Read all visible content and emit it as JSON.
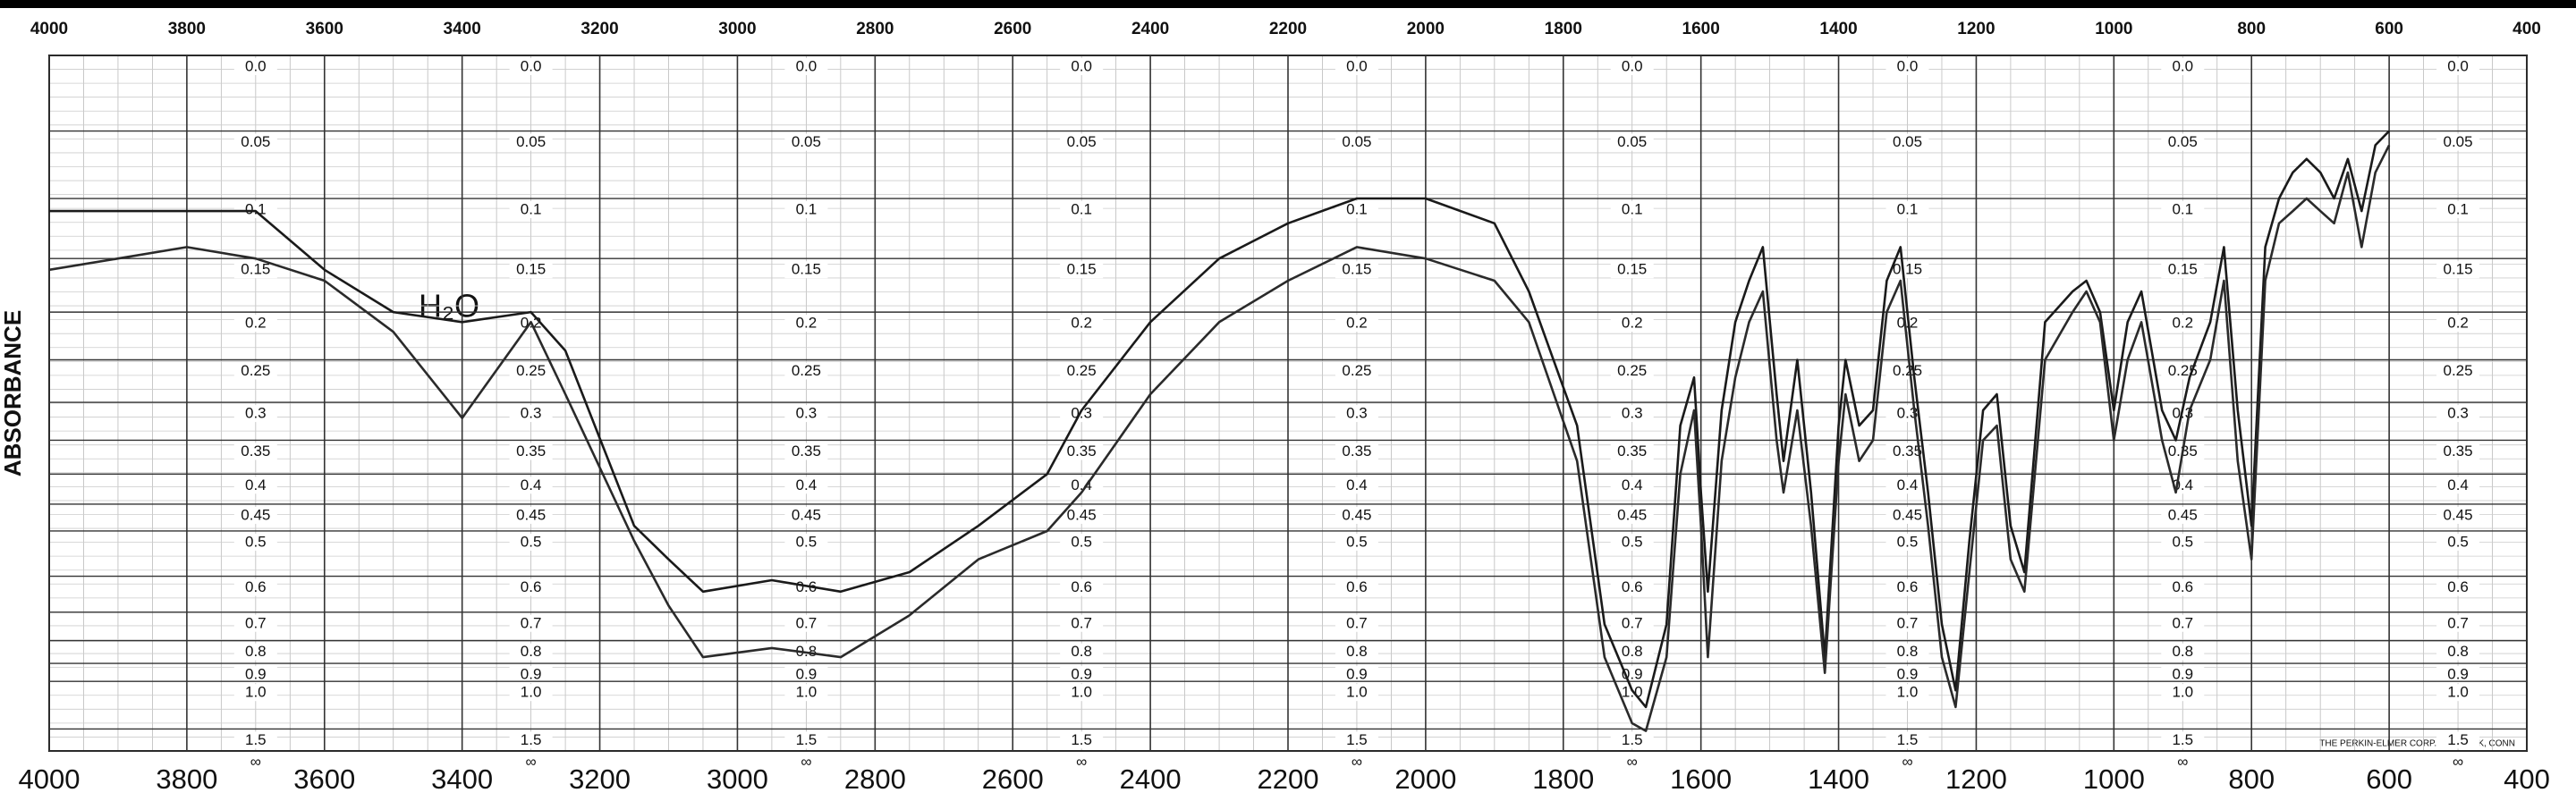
{
  "chart_data": {
    "type": "line",
    "ylabel": "ABSORBANCE",
    "annotation": "H₂O",
    "footnote": "THE PERKIN-ELMER CORP. NORWALK, CONN",
    "xlim": [
      4000,
      400
    ],
    "xticks": [
      4000,
      3800,
      3600,
      3400,
      3200,
      3000,
      2800,
      2600,
      2400,
      2200,
      2000,
      1800,
      1600,
      1400,
      1200,
      1000,
      800,
      600,
      400
    ],
    "yscale": "absorbance",
    "yticks": [
      {
        "value": 0,
        "label": "0.0"
      },
      0.05,
      0.1,
      0.15,
      0.2,
      0.25,
      0.3,
      0.35,
      0.4,
      0.45,
      0.5,
      0.6,
      0.7,
      0.8,
      0.9,
      {
        "value": 1,
        "label": "1.0"
      },
      1.5,
      {
        "value": null,
        "label": "∞"
      }
    ],
    "grid": true,
    "x": [
      4000,
      3900,
      3800,
      3700,
      3600,
      3500,
      3400,
      3300,
      3250,
      3150,
      3100,
      3050,
      2950,
      2850,
      2750,
      2650,
      2550,
      2500,
      2400,
      2300,
      2200,
      2100,
      2000,
      1900,
      1850,
      1780,
      1740,
      1700,
      1680,
      1650,
      1630,
      1610,
      1600,
      1590,
      1570,
      1550,
      1530,
      1510,
      1490,
      1480,
      1460,
      1440,
      1420,
      1400,
      1390,
      1370,
      1350,
      1330,
      1310,
      1290,
      1270,
      1250,
      1230,
      1210,
      1190,
      1170,
      1150,
      1130,
      1100,
      1060,
      1040,
      1020,
      1000,
      980,
      960,
      930,
      910,
      890,
      860,
      840,
      820,
      800,
      780,
      760,
      740,
      720,
      700,
      680,
      660,
      640,
      620,
      600
    ],
    "series": [
      {
        "color": "#1a1a1a",
        "values": [
          0.11,
          0.11,
          0.11,
          0.11,
          0.16,
          0.2,
          0.21,
          0.2,
          0.24,
          0.49,
          0.56,
          0.64,
          0.61,
          0.64,
          0.59,
          0.49,
          0.4,
          0.31,
          0.21,
          0.15,
          0.12,
          0.1,
          0.1,
          0.12,
          0.18,
          0.33,
          0.74,
          1.06,
          1.2,
          0.74,
          0.33,
          0.27,
          0.43,
          0.64,
          0.31,
          0.21,
          0.17,
          0.14,
          0.29,
          0.38,
          0.25,
          0.43,
          0.87,
          0.33,
          0.25,
          0.33,
          0.31,
          0.17,
          0.14,
          0.27,
          0.43,
          0.74,
          1.06,
          0.52,
          0.31,
          0.29,
          0.49,
          0.59,
          0.21,
          0.18,
          0.17,
          0.2,
          0.31,
          0.21,
          0.18,
          0.31,
          0.35,
          0.27,
          0.21,
          0.14,
          0.31,
          0.49,
          0.14,
          0.1,
          0.08,
          0.07,
          0.08,
          0.1,
          0.07,
          0.11,
          0.06,
          0.05
        ]
      },
      {
        "color": "#2a2a2a",
        "values": [
          0.16,
          0.15,
          0.14,
          0.15,
          0.17,
          0.22,
          0.32,
          0.21,
          0.29,
          0.52,
          0.68,
          0.87,
          0.83,
          0.87,
          0.71,
          0.56,
          0.5,
          0.43,
          0.29,
          0.21,
          0.17,
          0.14,
          0.15,
          0.17,
          0.21,
          0.38,
          0.87,
          1.4,
          1.54,
          0.87,
          0.4,
          0.31,
          0.49,
          0.87,
          0.38,
          0.27,
          0.21,
          0.18,
          0.35,
          0.43,
          0.31,
          0.49,
          0.95,
          0.38,
          0.29,
          0.38,
          0.35,
          0.2,
          0.17,
          0.31,
          0.49,
          0.87,
          1.2,
          0.59,
          0.35,
          0.33,
          0.56,
          0.64,
          0.25,
          0.2,
          0.18,
          0.21,
          0.35,
          0.25,
          0.21,
          0.35,
          0.43,
          0.31,
          0.25,
          0.17,
          0.38,
          0.56,
          0.17,
          0.12,
          0.11,
          0.1,
          0.11,
          0.12,
          0.08,
          0.14,
          0.08,
          0.06
        ]
      }
    ]
  }
}
